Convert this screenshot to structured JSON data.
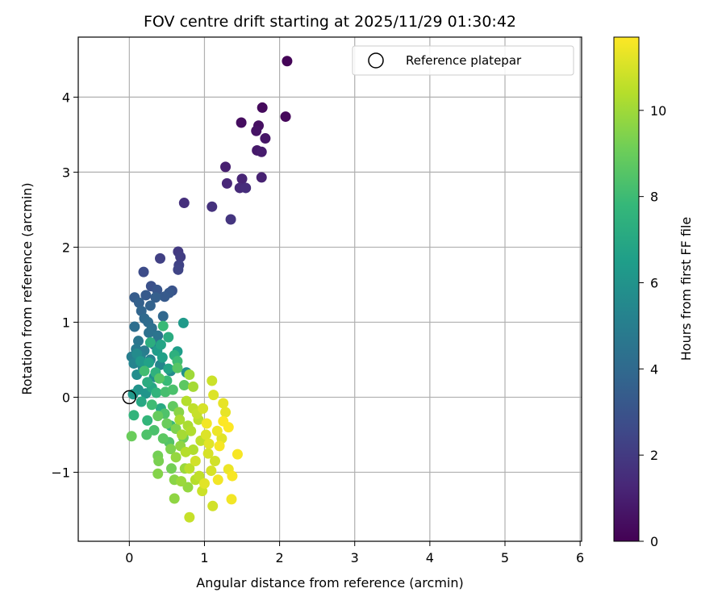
{
  "chart_data": {
    "type": "scatter",
    "title": "FOV centre drift starting at 2025/11/29 01:30:42",
    "xlabel": "Angular distance from reference (arcmin)",
    "ylabel": "Rotation from reference (arcmin)",
    "xlim": [
      -0.68,
      6.02
    ],
    "ylim": [
      -1.92,
      4.8
    ],
    "xticks": [
      "0",
      "1",
      "2",
      "3",
      "4",
      "5",
      "6"
    ],
    "yticks": [
      "−1",
      "0",
      "1",
      "2",
      "3",
      "4"
    ],
    "grid": true,
    "legend": {
      "placement": "top-right",
      "entries": [
        "Reference platepar"
      ]
    },
    "reference_point": {
      "x": 0,
      "y": 0,
      "name": "Reference platepar"
    },
    "colorbar": {
      "label": "Hours from first FF file",
      "range": [
        0,
        11.7
      ],
      "ticks": [
        "0",
        "2",
        "4",
        "6",
        "8",
        "10"
      ],
      "colormap": "viridis"
    },
    "series": [
      {
        "points": [
          {
            "x": 2.1,
            "y": 4.48,
            "h": 0.1
          },
          {
            "x": 2.08,
            "y": 3.74,
            "h": 0.2
          },
          {
            "x": 1.77,
            "y": 3.86,
            "h": 0.3
          },
          {
            "x": 1.49,
            "y": 3.66,
            "h": 0.4
          },
          {
            "x": 1.72,
            "y": 3.62,
            "h": 0.5
          },
          {
            "x": 1.69,
            "y": 3.55,
            "h": 0.6
          },
          {
            "x": 1.81,
            "y": 3.45,
            "h": 0.7
          },
          {
            "x": 1.7,
            "y": 3.29,
            "h": 0.8
          },
          {
            "x": 1.76,
            "y": 3.27,
            "h": 0.9
          },
          {
            "x": 1.28,
            "y": 3.07,
            "h": 1.0
          },
          {
            "x": 1.76,
            "y": 2.93,
            "h": 1.1
          },
          {
            "x": 1.5,
            "y": 2.91,
            "h": 1.2
          },
          {
            "x": 1.3,
            "y": 2.85,
            "h": 1.3
          },
          {
            "x": 1.47,
            "y": 2.79,
            "h": 1.4
          },
          {
            "x": 1.55,
            "y": 2.79,
            "h": 1.5
          },
          {
            "x": 0.73,
            "y": 2.59,
            "h": 1.6
          },
          {
            "x": 1.1,
            "y": 2.54,
            "h": 1.7
          },
          {
            "x": 1.35,
            "y": 2.37,
            "h": 1.8
          },
          {
            "x": 0.65,
            "y": 1.94,
            "h": 2.0
          },
          {
            "x": 0.68,
            "y": 1.87,
            "h": 2.1
          },
          {
            "x": 0.41,
            "y": 1.85,
            "h": 2.2
          },
          {
            "x": 0.66,
            "y": 1.76,
            "h": 2.3
          },
          {
            "x": 0.65,
            "y": 1.7,
            "h": 2.4
          },
          {
            "x": 0.19,
            "y": 1.67,
            "h": 2.7
          },
          {
            "x": 0.29,
            "y": 1.48,
            "h": 2.9
          },
          {
            "x": 0.57,
            "y": 1.42,
            "h": 3.0
          },
          {
            "x": 0.37,
            "y": 1.43,
            "h": 3.1
          },
          {
            "x": 0.53,
            "y": 1.39,
            "h": 3.2
          },
          {
            "x": 0.22,
            "y": 1.36,
            "h": 3.3
          },
          {
            "x": 0.47,
            "y": 1.34,
            "h": 3.3
          },
          {
            "x": 0.07,
            "y": 1.33,
            "h": 3.4
          },
          {
            "x": 0.35,
            "y": 1.33,
            "h": 3.5
          },
          {
            "x": 0.13,
            "y": 1.26,
            "h": 3.6
          },
          {
            "x": 0.28,
            "y": 1.22,
            "h": 3.7
          },
          {
            "x": 0.16,
            "y": 1.15,
            "h": 3.8
          },
          {
            "x": 0.45,
            "y": 1.08,
            "h": 3.9
          },
          {
            "x": 0.2,
            "y": 1.05,
            "h": 4.0
          },
          {
            "x": 0.25,
            "y": 1.0,
            "h": 4.1
          },
          {
            "x": 0.07,
            "y": 0.94,
            "h": 4.2
          },
          {
            "x": 0.3,
            "y": 0.92,
            "h": 4.3
          },
          {
            "x": 0.26,
            "y": 0.86,
            "h": 4.4
          },
          {
            "x": 0.38,
            "y": 0.82,
            "h": 4.5
          },
          {
            "x": 0.12,
            "y": 0.75,
            "h": 4.6
          },
          {
            "x": 0.33,
            "y": 0.7,
            "h": 4.7
          },
          {
            "x": 0.09,
            "y": 0.64,
            "h": 4.8
          },
          {
            "x": 0.2,
            "y": 0.62,
            "h": 4.9
          },
          {
            "x": 0.03,
            "y": 0.54,
            "h": 5.0
          },
          {
            "x": 0.15,
            "y": 0.55,
            "h": 5.1
          },
          {
            "x": 0.28,
            "y": 0.5,
            "h": 5.2
          },
          {
            "x": 0.06,
            "y": 0.45,
            "h": 5.3
          },
          {
            "x": 0.41,
            "y": 0.43,
            "h": 5.4
          },
          {
            "x": 0.18,
            "y": 0.4,
            "h": 5.5
          },
          {
            "x": 0.55,
            "y": 0.35,
            "h": 5.6
          },
          {
            "x": 0.1,
            "y": 0.3,
            "h": 5.7
          },
          {
            "x": 0.33,
            "y": 0.27,
            "h": 5.8
          },
          {
            "x": 0.76,
            "y": 0.33,
            "h": 5.9
          },
          {
            "x": 0.12,
            "y": 0.1,
            "h": 6.0
          },
          {
            "x": 0.22,
            "y": 0.05,
            "h": 6.1
          },
          {
            "x": 0.05,
            "y": 0.04,
            "h": 6.2
          },
          {
            "x": 0.72,
            "y": 0.99,
            "h": 6.3
          },
          {
            "x": 0.37,
            "y": 0.62,
            "h": 6.4
          },
          {
            "x": 0.64,
            "y": 0.61,
            "h": 6.5
          },
          {
            "x": 0.44,
            "y": 0.53,
            "h": 6.6
          },
          {
            "x": 0.26,
            "y": 0.46,
            "h": 6.7
          },
          {
            "x": 0.52,
            "y": 0.38,
            "h": 6.8
          },
          {
            "x": 0.3,
            "y": 0.13,
            "h": 6.9
          },
          {
            "x": 0.16,
            "y": -0.06,
            "h": 7.0
          },
          {
            "x": 0.42,
            "y": -0.15,
            "h": 7.1
          },
          {
            "x": 0.52,
            "y": 0.8,
            "h": 7.2
          },
          {
            "x": 0.28,
            "y": 0.73,
            "h": 7.3
          },
          {
            "x": 0.6,
            "y": 0.56,
            "h": 7.4
          },
          {
            "x": 0.35,
            "y": 0.33,
            "h": 7.5
          },
          {
            "x": 0.06,
            "y": -0.24,
            "h": 7.6
          },
          {
            "x": 0.24,
            "y": -0.31,
            "h": 7.7
          },
          {
            "x": 0.55,
            "y": -0.38,
            "h": 7.8
          },
          {
            "x": 0.45,
            "y": 0.95,
            "h": 7.9
          },
          {
            "x": 0.64,
            "y": 0.48,
            "h": 8.0
          },
          {
            "x": 0.2,
            "y": 0.35,
            "h": 8.1
          },
          {
            "x": 0.48,
            "y": 0.07,
            "h": 8.2
          },
          {
            "x": 0.33,
            "y": -0.44,
            "h": 8.3
          },
          {
            "x": 0.23,
            "y": -0.5,
            "h": 8.4
          },
          {
            "x": 0.53,
            "y": -0.6,
            "h": 8.5
          },
          {
            "x": 0.64,
            "y": 0.39,
            "h": 8.6
          },
          {
            "x": 0.4,
            "y": 0.25,
            "h": 8.6
          },
          {
            "x": 0.73,
            "y": 0.16,
            "h": 8.7
          },
          {
            "x": 0.58,
            "y": -0.12,
            "h": 8.8
          },
          {
            "x": 0.38,
            "y": -0.25,
            "h": 8.9
          },
          {
            "x": 0.03,
            "y": -0.52,
            "h": 9.0
          },
          {
            "x": 0.72,
            "y": -0.54,
            "h": 9.1
          },
          {
            "x": 0.38,
            "y": -0.78,
            "h": 9.2
          },
          {
            "x": 0.39,
            "y": -0.85,
            "h": 9.3
          },
          {
            "x": 0.55,
            "y": -0.69,
            "h": 9.4
          },
          {
            "x": 0.38,
            "y": -1.02,
            "h": 9.5
          },
          {
            "x": 0.6,
            "y": -1.1,
            "h": 9.6
          },
          {
            "x": 0.6,
            "y": -1.35,
            "h": 9.7
          },
          {
            "x": 0.78,
            "y": -1.2,
            "h": 9.8
          },
          {
            "x": 0.69,
            "y": -1.12,
            "h": 9.9
          },
          {
            "x": 0.8,
            "y": 0.3,
            "h": 10.0
          },
          {
            "x": 0.85,
            "y": 0.14,
            "h": 10.1
          },
          {
            "x": 0.67,
            "y": -0.3,
            "h": 10.2
          },
          {
            "x": 0.82,
            "y": -0.45,
            "h": 10.3
          },
          {
            "x": 0.75,
            "y": -0.73,
            "h": 10.4
          },
          {
            "x": 0.8,
            "y": -0.95,
            "h": 10.5
          },
          {
            "x": 0.93,
            "y": -1.05,
            "h": 10.6
          },
          {
            "x": 0.8,
            "y": -1.6,
            "h": 10.7
          },
          {
            "x": 1.1,
            "y": 0.22,
            "h": 10.8
          },
          {
            "x": 1.11,
            "y": -1.45,
            "h": 10.9
          },
          {
            "x": 0.98,
            "y": -0.15,
            "h": 11.0
          },
          {
            "x": 1.12,
            "y": 0.03,
            "h": 11.1
          },
          {
            "x": 1.06,
            "y": -0.62,
            "h": 11.2
          },
          {
            "x": 1.25,
            "y": -0.08,
            "h": 11.3
          },
          {
            "x": 1.32,
            "y": -0.96,
            "h": 11.4
          },
          {
            "x": 1.36,
            "y": -1.36,
            "h": 11.5
          },
          {
            "x": 1.44,
            "y": -0.76,
            "h": 11.6
          },
          {
            "x": 1.37,
            "y": -1.05,
            "h": 11.6
          },
          {
            "x": 1.25,
            "y": -0.32,
            "h": 11.7
          },
          {
            "x": 1.17,
            "y": -0.45,
            "h": 11.4
          },
          {
            "x": 1.0,
            "y": -1.15,
            "h": 11.2
          },
          {
            "x": 0.88,
            "y": -0.85,
            "h": 10.9
          },
          {
            "x": 0.95,
            "y": -0.58,
            "h": 10.6
          },
          {
            "x": 1.14,
            "y": -0.85,
            "h": 10.9
          },
          {
            "x": 1.23,
            "y": -0.55,
            "h": 11.2
          },
          {
            "x": 1.03,
            "y": -0.35,
            "h": 11.5
          },
          {
            "x": 0.9,
            "y": -0.22,
            "h": 10.7
          },
          {
            "x": 0.76,
            "y": -0.05,
            "h": 10.4
          },
          {
            "x": 0.7,
            "y": -0.5,
            "h": 10.1
          },
          {
            "x": 0.85,
            "y": -0.7,
            "h": 10.3
          },
          {
            "x": 1.09,
            "y": -0.98,
            "h": 11.0
          },
          {
            "x": 1.28,
            "y": -0.2,
            "h": 11.3
          },
          {
            "x": 0.97,
            "y": -1.25,
            "h": 10.8
          },
          {
            "x": 0.62,
            "y": -0.8,
            "h": 9.8
          },
          {
            "x": 0.5,
            "y": -0.35,
            "h": 9.0
          },
          {
            "x": 0.45,
            "y": -0.55,
            "h": 8.7
          },
          {
            "x": 0.3,
            "y": -0.1,
            "h": 8.0
          },
          {
            "x": 0.58,
            "y": 0.1,
            "h": 8.3
          },
          {
            "x": 0.66,
            "y": -0.2,
            "h": 9.6
          },
          {
            "x": 0.78,
            "y": -0.38,
            "h": 10.2
          },
          {
            "x": 0.92,
            "y": -0.3,
            "h": 10.5
          },
          {
            "x": 1.05,
            "y": -0.75,
            "h": 11.0
          },
          {
            "x": 1.18,
            "y": -1.1,
            "h": 11.5
          },
          {
            "x": 0.88,
            "y": -1.1,
            "h": 10.4
          },
          {
            "x": 0.74,
            "y": -0.95,
            "h": 9.9
          },
          {
            "x": 0.56,
            "y": -0.95,
            "h": 9.2
          },
          {
            "x": 0.47,
            "y": -0.22,
            "h": 8.4
          },
          {
            "x": 0.36,
            "y": 0.06,
            "h": 7.6
          },
          {
            "x": 0.24,
            "y": 0.2,
            "h": 7.2
          },
          {
            "x": 0.1,
            "y": 0.58,
            "h": 5.6
          },
          {
            "x": 0.15,
            "y": 0.48,
            "h": 6.2
          },
          {
            "x": 0.42,
            "y": 0.7,
            "h": 6.8
          },
          {
            "x": 0.5,
            "y": 0.22,
            "h": 7.9
          },
          {
            "x": 0.85,
            "y": -0.15,
            "h": 10.6
          },
          {
            "x": 1.2,
            "y": -0.65,
            "h": 11.6
          },
          {
            "x": 1.32,
            "y": -0.4,
            "h": 11.7
          },
          {
            "x": 1.02,
            "y": -0.5,
            "h": 11.1
          },
          {
            "x": 0.68,
            "y": -0.65,
            "h": 9.7
          },
          {
            "x": 0.62,
            "y": -0.42,
            "h": 9.4
          }
        ]
      }
    ]
  }
}
